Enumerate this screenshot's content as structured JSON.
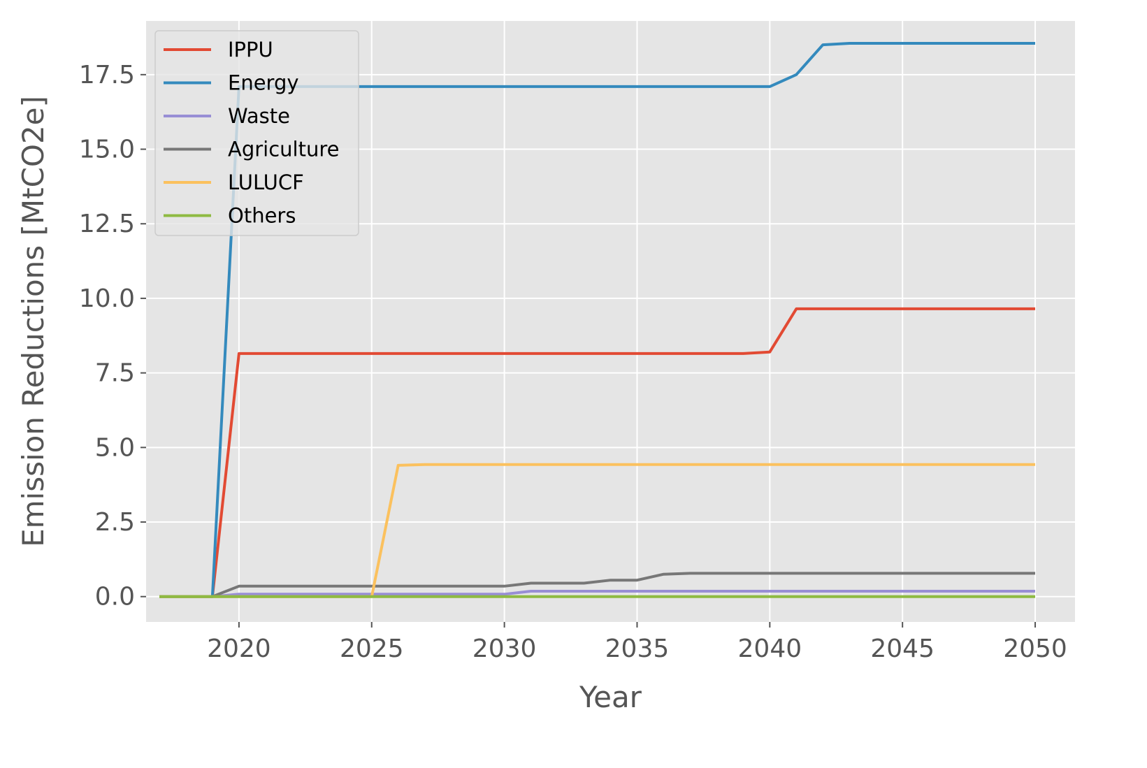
{
  "chart_data": {
    "type": "line",
    "title": "",
    "xlabel": "Year",
    "ylabel": "Emission Reductions [MtCO2e]",
    "xlim": [
      2016.5,
      2051.5
    ],
    "ylim": [
      -0.85,
      19.3
    ],
    "x_ticks": [
      2020,
      2025,
      2030,
      2035,
      2040,
      2045,
      2050
    ],
    "x_tick_labels": [
      "2020",
      "2025",
      "2030",
      "2035",
      "2040",
      "2045",
      "2050"
    ],
    "y_ticks": [
      0.0,
      2.5,
      5.0,
      7.5,
      10.0,
      12.5,
      15.0,
      17.5
    ],
    "y_tick_labels": [
      "0.0",
      "2.5",
      "5.0",
      "7.5",
      "10.0",
      "12.5",
      "15.0",
      "17.5"
    ],
    "grid": true,
    "background": "#e5e5e5",
    "legend_position": "upper-left",
    "series": [
      {
        "name": "IPPU",
        "color": "#e24a33",
        "points": [
          [
            2017,
            0
          ],
          [
            2019,
            0
          ],
          [
            2020,
            8.15
          ],
          [
            2039,
            8.15
          ],
          [
            2040,
            8.2
          ],
          [
            2041,
            9.65
          ],
          [
            2050,
            9.65
          ]
        ]
      },
      {
        "name": "Energy",
        "color": "#348abd",
        "points": [
          [
            2017,
            0
          ],
          [
            2019,
            0
          ],
          [
            2020,
            17.1
          ],
          [
            2040,
            17.1
          ],
          [
            2041,
            17.5
          ],
          [
            2042,
            18.5
          ],
          [
            2043,
            18.55
          ],
          [
            2050,
            18.55
          ]
        ]
      },
      {
        "name": "Waste",
        "color": "#988ed5",
        "points": [
          [
            2017,
            0
          ],
          [
            2019,
            0
          ],
          [
            2020,
            0.08
          ],
          [
            2030,
            0.08
          ],
          [
            2031,
            0.18
          ],
          [
            2050,
            0.18
          ]
        ]
      },
      {
        "name": "Agriculture",
        "color": "#777777",
        "points": [
          [
            2017,
            0
          ],
          [
            2019,
            0
          ],
          [
            2020,
            0.35
          ],
          [
            2030,
            0.35
          ],
          [
            2031,
            0.45
          ],
          [
            2033,
            0.45
          ],
          [
            2034,
            0.55
          ],
          [
            2035,
            0.55
          ],
          [
            2036,
            0.75
          ],
          [
            2037,
            0.78
          ],
          [
            2050,
            0.78
          ]
        ]
      },
      {
        "name": "LULUCF",
        "color": "#fbc15e",
        "points": [
          [
            2017,
            0
          ],
          [
            2025,
            0
          ],
          [
            2026,
            4.4
          ],
          [
            2027,
            4.43
          ],
          [
            2050,
            4.43
          ]
        ]
      },
      {
        "name": "Others",
        "color": "#8eba42",
        "points": [
          [
            2017,
            0
          ],
          [
            2050,
            0
          ]
        ]
      }
    ]
  }
}
